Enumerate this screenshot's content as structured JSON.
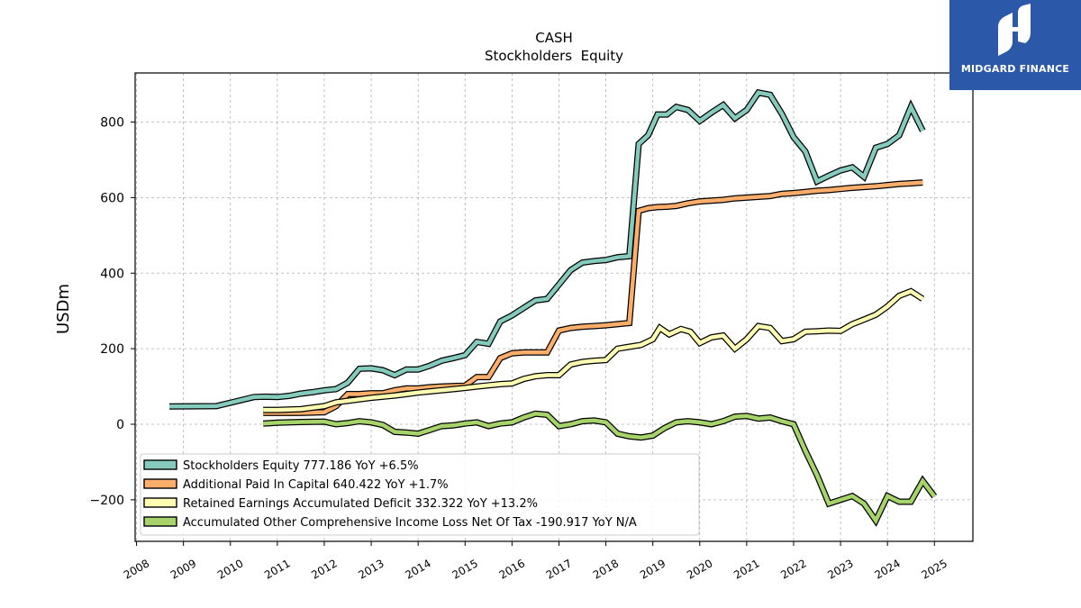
{
  "logo": {
    "text": "MIDGARD FINANCE",
    "background": "#2b58a8"
  },
  "chart_data": {
    "type": "line",
    "title": "CASH",
    "subtitle": "Stockholders  Equity",
    "ylabel": "USDm",
    "xlabel": "",
    "ylim": [
      -310,
      930
    ],
    "xlim": [
      2007.97,
      2025.82
    ],
    "yticks": [
      -200,
      0,
      200,
      400,
      600,
      800
    ],
    "ytick_labels": [
      "−200",
      "0",
      "200",
      "400",
      "600",
      "800"
    ],
    "xticks": [
      2008,
      2009,
      2010,
      2011,
      2012,
      2013,
      2014,
      2015,
      2016,
      2017,
      2018,
      2019,
      2020,
      2021,
      2022,
      2023,
      2024,
      2025
    ],
    "grid": true,
    "legend_position": "bottom-left",
    "series": [
      {
        "name": "Stockholders Equity",
        "legend": "Stockholders Equity  777.186 YoY +6.5%",
        "color": "#84cbbd",
        "points": [
          [
            2008.7,
            47
          ],
          [
            2009.7,
            48
          ],
          [
            2010.0,
            57
          ],
          [
            2010.5,
            72
          ],
          [
            2010.75,
            73
          ],
          [
            2011.0,
            72
          ],
          [
            2011.25,
            75
          ],
          [
            2011.5,
            81
          ],
          [
            2011.75,
            85
          ],
          [
            2012.0,
            90
          ],
          [
            2012.25,
            93
          ],
          [
            2012.5,
            110
          ],
          [
            2012.75,
            147
          ],
          [
            2013.0,
            148
          ],
          [
            2013.25,
            143
          ],
          [
            2013.5,
            130
          ],
          [
            2013.75,
            145
          ],
          [
            2014.0,
            145
          ],
          [
            2014.25,
            155
          ],
          [
            2014.5,
            168
          ],
          [
            2014.75,
            175
          ],
          [
            2015.0,
            183
          ],
          [
            2015.25,
            218
          ],
          [
            2015.5,
            213
          ],
          [
            2015.75,
            272
          ],
          [
            2016.0,
            288
          ],
          [
            2016.25,
            308
          ],
          [
            2016.5,
            328
          ],
          [
            2016.75,
            332
          ],
          [
            2017.0,
            370
          ],
          [
            2017.25,
            408
          ],
          [
            2017.5,
            428
          ],
          [
            2017.75,
            432
          ],
          [
            2018.0,
            435
          ],
          [
            2018.25,
            442
          ],
          [
            2018.5,
            445
          ],
          [
            2018.7,
            742
          ],
          [
            2018.9,
            765
          ],
          [
            2019.1,
            820
          ],
          [
            2019.3,
            820
          ],
          [
            2019.5,
            840
          ],
          [
            2019.75,
            832
          ],
          [
            2020.0,
            803
          ],
          [
            2020.25,
            825
          ],
          [
            2020.5,
            845
          ],
          [
            2020.75,
            810
          ],
          [
            2021.0,
            832
          ],
          [
            2021.25,
            878
          ],
          [
            2021.5,
            872
          ],
          [
            2021.75,
            822
          ],
          [
            2022.0,
            760
          ],
          [
            2022.25,
            722
          ],
          [
            2022.5,
            643
          ],
          [
            2022.75,
            658
          ],
          [
            2023.0,
            672
          ],
          [
            2023.25,
            680
          ],
          [
            2023.5,
            655
          ],
          [
            2023.75,
            732
          ],
          [
            2024.0,
            742
          ],
          [
            2024.25,
            765
          ],
          [
            2024.5,
            840
          ],
          [
            2024.75,
            777
          ]
        ]
      },
      {
        "name": "Additional Paid In Capital",
        "legend": "Additional Paid In Capital  640.422 YoY +1.7%",
        "color": "#fdae6b",
        "points": [
          [
            2010.7,
            30
          ],
          [
            2011.0,
            30
          ],
          [
            2011.5,
            30
          ],
          [
            2012.0,
            32
          ],
          [
            2012.25,
            48
          ],
          [
            2012.5,
            80
          ],
          [
            2012.75,
            80
          ],
          [
            2013.0,
            82
          ],
          [
            2013.25,
            82
          ],
          [
            2013.5,
            90
          ],
          [
            2013.75,
            95
          ],
          [
            2014.0,
            95
          ],
          [
            2014.25,
            98
          ],
          [
            2014.5,
            100
          ],
          [
            2014.75,
            101
          ],
          [
            2015.0,
            102
          ],
          [
            2015.25,
            125
          ],
          [
            2015.5,
            125
          ],
          [
            2015.75,
            175
          ],
          [
            2016.0,
            188
          ],
          [
            2016.25,
            190
          ],
          [
            2016.5,
            190
          ],
          [
            2016.75,
            190
          ],
          [
            2017.0,
            248
          ],
          [
            2017.25,
            255
          ],
          [
            2017.5,
            258
          ],
          [
            2017.75,
            260
          ],
          [
            2018.0,
            262
          ],
          [
            2018.25,
            265
          ],
          [
            2018.5,
            268
          ],
          [
            2018.7,
            565
          ],
          [
            2018.9,
            572
          ],
          [
            2019.1,
            575
          ],
          [
            2019.3,
            576
          ],
          [
            2019.5,
            578
          ],
          [
            2019.75,
            585
          ],
          [
            2020.0,
            590
          ],
          [
            2020.25,
            592
          ],
          [
            2020.5,
            594
          ],
          [
            2020.75,
            598
          ],
          [
            2021.0,
            600
          ],
          [
            2021.25,
            602
          ],
          [
            2021.5,
            604
          ],
          [
            2021.75,
            610
          ],
          [
            2022.0,
            612
          ],
          [
            2022.25,
            615
          ],
          [
            2022.5,
            618
          ],
          [
            2022.75,
            620
          ],
          [
            2023.0,
            623
          ],
          [
            2023.25,
            626
          ],
          [
            2023.5,
            628
          ],
          [
            2023.75,
            630
          ],
          [
            2024.0,
            633
          ],
          [
            2024.25,
            636
          ],
          [
            2024.5,
            638
          ],
          [
            2024.75,
            640
          ]
        ]
      },
      {
        "name": "Retained Earnings Accumulated Deficit",
        "legend": "Retained Earnings Accumulated Deficit  332.322 YoY +13.2%",
        "color": "#ffffb3",
        "points": [
          [
            2010.7,
            38
          ],
          [
            2011.0,
            38
          ],
          [
            2011.5,
            40
          ],
          [
            2012.0,
            48
          ],
          [
            2012.25,
            58
          ],
          [
            2012.5,
            62
          ],
          [
            2012.75,
            66
          ],
          [
            2013.0,
            70
          ],
          [
            2013.25,
            73
          ],
          [
            2013.5,
            76
          ],
          [
            2013.75,
            80
          ],
          [
            2014.0,
            84
          ],
          [
            2014.25,
            87
          ],
          [
            2014.5,
            90
          ],
          [
            2014.75,
            93
          ],
          [
            2015.0,
            96
          ],
          [
            2015.25,
            100
          ],
          [
            2015.5,
            103
          ],
          [
            2015.75,
            106
          ],
          [
            2016.0,
            108
          ],
          [
            2016.25,
            120
          ],
          [
            2016.5,
            127
          ],
          [
            2016.75,
            130
          ],
          [
            2017.0,
            130
          ],
          [
            2017.25,
            158
          ],
          [
            2017.5,
            165
          ],
          [
            2017.75,
            168
          ],
          [
            2018.0,
            170
          ],
          [
            2018.25,
            200
          ],
          [
            2018.5,
            205
          ],
          [
            2018.75,
            210
          ],
          [
            2019.0,
            225
          ],
          [
            2019.15,
            255
          ],
          [
            2019.35,
            238
          ],
          [
            2019.6,
            252
          ],
          [
            2019.8,
            245
          ],
          [
            2020.0,
            215
          ],
          [
            2020.25,
            230
          ],
          [
            2020.5,
            235
          ],
          [
            2020.75,
            200
          ],
          [
            2021.0,
            225
          ],
          [
            2021.25,
            260
          ],
          [
            2021.5,
            255
          ],
          [
            2021.75,
            220
          ],
          [
            2022.0,
            225
          ],
          [
            2022.25,
            245
          ],
          [
            2022.5,
            246
          ],
          [
            2022.75,
            248
          ],
          [
            2023.0,
            247
          ],
          [
            2023.25,
            265
          ],
          [
            2023.5,
            277
          ],
          [
            2023.75,
            290
          ],
          [
            2024.0,
            312
          ],
          [
            2024.25,
            340
          ],
          [
            2024.5,
            352
          ],
          [
            2024.75,
            332
          ]
        ]
      },
      {
        "name": "Accumulated Other Comprehensive Income Loss Net Of Tax",
        "legend": "Accumulated Other Comprehensive Income Loss Net Of Tax  -190.917 YoY N/A",
        "color": "#a6d36a",
        "points": [
          [
            2010.7,
            2
          ],
          [
            2011.0,
            4
          ],
          [
            2011.5,
            6
          ],
          [
            2012.0,
            7
          ],
          [
            2012.25,
            0
          ],
          [
            2012.5,
            3
          ],
          [
            2012.75,
            8
          ],
          [
            2013.0,
            5
          ],
          [
            2013.25,
            -2
          ],
          [
            2013.5,
            -20
          ],
          [
            2013.75,
            -22
          ],
          [
            2014.0,
            -25
          ],
          [
            2014.25,
            -15
          ],
          [
            2014.5,
            -5
          ],
          [
            2014.75,
            -3
          ],
          [
            2015.0,
            2
          ],
          [
            2015.25,
            5
          ],
          [
            2015.5,
            -5
          ],
          [
            2015.75,
            2
          ],
          [
            2016.0,
            5
          ],
          [
            2016.25,
            18
          ],
          [
            2016.5,
            28
          ],
          [
            2016.75,
            25
          ],
          [
            2017.0,
            -5
          ],
          [
            2017.25,
            0
          ],
          [
            2017.5,
            8
          ],
          [
            2017.75,
            10
          ],
          [
            2018.0,
            5
          ],
          [
            2018.25,
            -25
          ],
          [
            2018.5,
            -32
          ],
          [
            2018.75,
            -35
          ],
          [
            2019.0,
            -30
          ],
          [
            2019.25,
            -10
          ],
          [
            2019.5,
            5
          ],
          [
            2019.75,
            8
          ],
          [
            2020.0,
            5
          ],
          [
            2020.25,
            0
          ],
          [
            2020.5,
            8
          ],
          [
            2020.75,
            20
          ],
          [
            2021.0,
            22
          ],
          [
            2021.25,
            15
          ],
          [
            2021.5,
            18
          ],
          [
            2021.75,
            8
          ],
          [
            2022.0,
            0
          ],
          [
            2022.25,
            -70
          ],
          [
            2022.5,
            -135
          ],
          [
            2022.75,
            -210
          ],
          [
            2023.0,
            -200
          ],
          [
            2023.25,
            -190
          ],
          [
            2023.5,
            -210
          ],
          [
            2023.75,
            -255
          ],
          [
            2024.0,
            -190
          ],
          [
            2024.25,
            -205
          ],
          [
            2024.5,
            -205
          ],
          [
            2024.75,
            -150
          ],
          [
            2025.0,
            -191
          ]
        ]
      }
    ]
  }
}
